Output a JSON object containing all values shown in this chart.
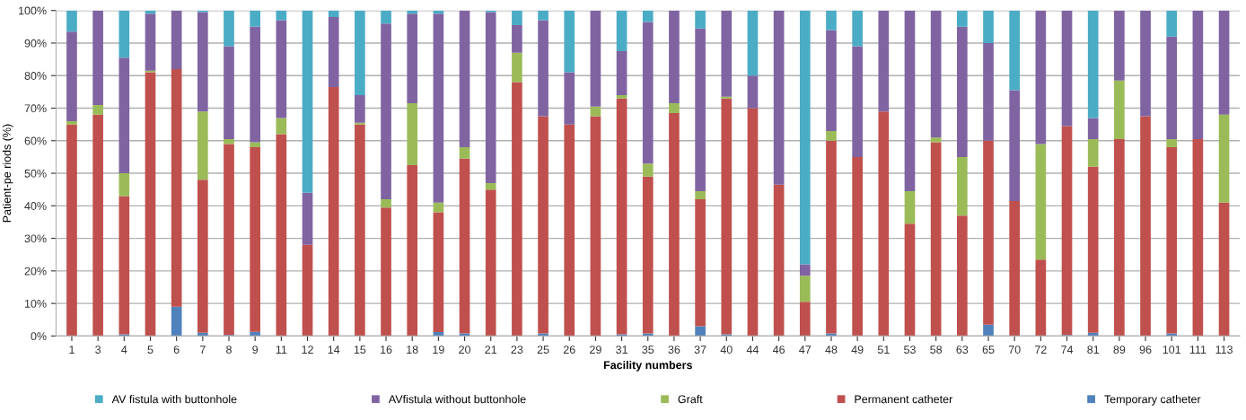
{
  "chart_data": {
    "type": "bar",
    "stacked": true,
    "xlabel": "Facility numbers",
    "ylabel": "Patient-pe riods (%)",
    "categories": [
      "1",
      "3",
      "4",
      "5",
      "6",
      "7",
      "8",
      "9",
      "11",
      "12",
      "14",
      "15",
      "16",
      "18",
      "19",
      "20",
      "21",
      "23",
      "25",
      "26",
      "29",
      "31",
      "35",
      "36",
      "37",
      "40",
      "44",
      "46",
      "47",
      "48",
      "49",
      "51",
      "53",
      "58",
      "63",
      "65",
      "70",
      "72",
      "74",
      "81",
      "89",
      "96",
      "101",
      "111",
      "113"
    ],
    "series": [
      {
        "name": "Temporary catheter",
        "color": "#4f81bd",
        "values": [
          0,
          0,
          0.5,
          0,
          9,
          1,
          0.3,
          1.3,
          0,
          0,
          0,
          0,
          0,
          0,
          1.2,
          0.8,
          0,
          0,
          0.8,
          0,
          0,
          0.5,
          0.8,
          0,
          3,
          0.5,
          0,
          0,
          0,
          0.8,
          0,
          0,
          0,
          0,
          0,
          3.5,
          0,
          0,
          0.3,
          1,
          0,
          0,
          0.8,
          0,
          0
        ]
      },
      {
        "name": "Permanent catheter",
        "color": "#c0504d",
        "values": [
          65,
          68,
          42.5,
          81,
          73,
          47,
          58.7,
          56.7,
          62,
          28,
          76.5,
          65,
          39.5,
          52.5,
          36.8,
          53.7,
          45,
          78,
          66.7,
          65,
          67.5,
          72.5,
          48.2,
          68.5,
          39,
          72.5,
          70,
          46.5,
          10.5,
          59.2,
          55,
          69,
          34.5,
          59.5,
          37,
          56.5,
          41.5,
          23.5,
          64.2,
          51,
          60.5,
          67.5,
          57.2,
          60.5,
          41
        ]
      },
      {
        "name": "Graft",
        "color": "#9bbb59",
        "values": [
          1,
          3,
          7,
          0.5,
          0,
          21,
          1.5,
          1.5,
          5,
          0,
          0,
          0.5,
          2.5,
          19,
          3,
          3.5,
          2,
          9,
          0,
          0,
          3,
          1,
          4,
          3,
          2.5,
          0.5,
          0,
          0,
          8,
          3,
          0,
          0,
          10,
          1.5,
          18,
          0,
          0,
          35.5,
          0,
          8.5,
          18,
          0,
          2.5,
          0,
          27
        ]
      },
      {
        "name": "AVfistula without buttonhole",
        "color": "#8064a2",
        "values": [
          27.5,
          29,
          35.5,
          17.5,
          18,
          30.5,
          28.5,
          35.5,
          30,
          16,
          21.5,
          8.5,
          54,
          27.5,
          58,
          42,
          52.5,
          8.5,
          29.5,
          16,
          29.5,
          13.5,
          43.5,
          28.5,
          50,
          26.5,
          10,
          53.5,
          3.5,
          31,
          34,
          31,
          55.5,
          39,
          40,
          30,
          34,
          41,
          35.5,
          6.5,
          21.5,
          32.5,
          31.5,
          39.5,
          32
        ]
      },
      {
        "name": "AV fistula with buttonhole",
        "color": "#4bacc6",
        "values": [
          6.5,
          0,
          14.5,
          1,
          0,
          0.5,
          11,
          5,
          3,
          56,
          2,
          26,
          4,
          1,
          1,
          0,
          0.5,
          4.5,
          3,
          19,
          0,
          12.5,
          3.5,
          0,
          5.5,
          0,
          20,
          0,
          78,
          6,
          11,
          0,
          0,
          0,
          5,
          10,
          24.5,
          0,
          0,
          33,
          0,
          0,
          8,
          0,
          0
        ]
      }
    ],
    "ylim": [
      0,
      100
    ],
    "yticks": [
      {
        "value": 0,
        "label": "0%"
      },
      {
        "value": 10,
        "label": "10%"
      },
      {
        "value": 20,
        "label": "20%"
      },
      {
        "value": 30,
        "label": "30%"
      },
      {
        "value": 40,
        "label": "40%"
      },
      {
        "value": 50,
        "label": "50%"
      },
      {
        "value": 60,
        "label": "60%"
      },
      {
        "value": 70,
        "label": "70%"
      },
      {
        "value": 80,
        "label": "80%"
      },
      {
        "value": 90,
        "label": "90%"
      },
      {
        "value": 100,
        "label": "100%"
      }
    ],
    "grid": "y",
    "legend": "bottom"
  }
}
